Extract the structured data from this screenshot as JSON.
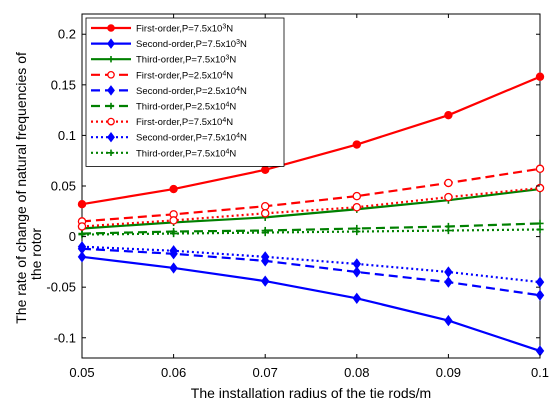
{
  "chart_data": {
    "type": "line",
    "xlabel": "The installation radius of the tie rods/m",
    "ylabel_lines": [
      "The rate of change of natural frequencies of",
      "the  rotor"
    ],
    "xlim": [
      0.05,
      0.1
    ],
    "ylim": [
      -0.12,
      0.22
    ],
    "x": [
      0.05,
      0.06,
      0.07,
      0.08,
      0.09,
      0.1
    ],
    "x_tick_labels": [
      "0.05",
      "0.06",
      "0.07",
      "0.08",
      "0.09",
      "0.1"
    ],
    "y_ticks": [
      -0.1,
      -0.05,
      0,
      0.05,
      0.1,
      0.15,
      0.2
    ],
    "y_tick_labels": [
      "-0.1",
      "-0.05",
      "0",
      "0.05",
      "0.1",
      "0.15",
      "0.2"
    ],
    "grid": false,
    "legend_position": "top-left",
    "series": [
      {
        "name_parts": [
          "First-order,P=7.5x10",
          "3",
          "N"
        ],
        "color": "#ff0000",
        "style": "solid",
        "marker": "circle",
        "values": [
          0.032,
          0.047,
          0.066,
          0.091,
          0.12,
          0.158
        ]
      },
      {
        "name_parts": [
          "Second-order,P=7.5x10",
          "3",
          "N"
        ],
        "color": "#0000ff",
        "style": "solid",
        "marker": "diamond",
        "values": [
          -0.02,
          -0.031,
          -0.044,
          -0.061,
          -0.083,
          -0.113
        ]
      },
      {
        "name_parts": [
          "Third-order,P=7.5x10",
          "3",
          "N"
        ],
        "color": "#008000",
        "style": "solid",
        "marker": "plus",
        "values": [
          0.008,
          0.014,
          0.019,
          0.027,
          0.036,
          0.047
        ]
      },
      {
        "name_parts": [
          "First-order,P=2.5x10",
          "4",
          "N"
        ],
        "color": "#ff0000",
        "style": "dashed",
        "marker": "circle-open",
        "values": [
          0.015,
          0.022,
          0.03,
          0.04,
          0.053,
          0.067
        ]
      },
      {
        "name_parts": [
          "Second-order,P=2.5x10",
          "4",
          "N"
        ],
        "color": "#0000ff",
        "style": "dashed",
        "marker": "diamond",
        "values": [
          -0.012,
          -0.017,
          -0.024,
          -0.035,
          -0.045,
          -0.058
        ]
      },
      {
        "name_parts": [
          "Third-order,P=2.5x10",
          "4",
          "N"
        ],
        "color": "#008000",
        "style": "dashed",
        "marker": "plus",
        "values": [
          0.003,
          0.005,
          0.006,
          0.008,
          0.01,
          0.013
        ]
      },
      {
        "name_parts": [
          "First-order,P=7.5x10",
          "4",
          "N"
        ],
        "color": "#ff0000",
        "style": "dotted",
        "marker": "circle-open",
        "values": [
          0.01,
          0.016,
          0.023,
          0.029,
          0.039,
          0.048
        ]
      },
      {
        "name_parts": [
          "Second-order,P=7.5x10",
          "4",
          "N"
        ],
        "color": "#0000ff",
        "style": "dotted",
        "marker": "diamond",
        "values": [
          -0.01,
          -0.014,
          -0.02,
          -0.027,
          -0.035,
          -0.045
        ]
      },
      {
        "name_parts": [
          "Third-order,P=7.5x10",
          "4",
          "N"
        ],
        "color": "#008000",
        "style": "dotted",
        "marker": "plus",
        "values": [
          0.002,
          0.003,
          0.004,
          0.005,
          0.006,
          0.007
        ]
      }
    ]
  }
}
